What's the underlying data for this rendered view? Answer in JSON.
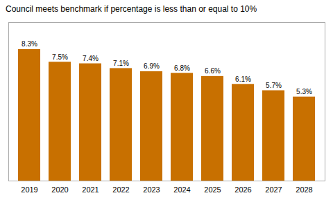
{
  "chart_data": {
    "type": "bar",
    "title": "Council meets benchmark if percentage is less than or equal to 10%",
    "categories": [
      "2019",
      "2020",
      "2021",
      "2022",
      "2023",
      "2024",
      "2025",
      "2026",
      "2027",
      "2028"
    ],
    "values": [
      8.3,
      7.5,
      7.4,
      7.1,
      6.9,
      6.8,
      6.6,
      6.1,
      5.7,
      5.3
    ],
    "value_labels": [
      "8.3%",
      "7.5%",
      "7.4%",
      "7.1%",
      "6.9%",
      "6.8%",
      "6.6%",
      "6.1%",
      "5.7%",
      "5.3%"
    ],
    "color": "#C87000",
    "ylim": [
      0,
      10
    ],
    "data_labels": true,
    "tick_labels": "x",
    "grid": false
  }
}
